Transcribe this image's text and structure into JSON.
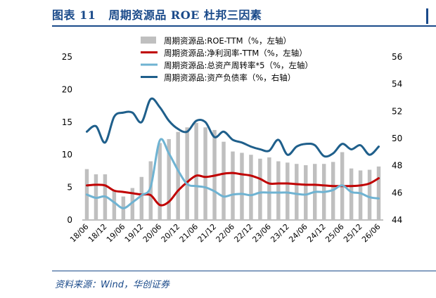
{
  "figure": {
    "number": "图表 11",
    "title": "周期资源品 ROE 杜邦三因素",
    "source": "资料来源：Wind，华创证券"
  },
  "chart_data": {
    "type": "bar+line",
    "categories": [
      "18/06",
      "18/09",
      "18/12",
      "19/03",
      "19/06",
      "19/09",
      "19/12",
      "20/03",
      "20/06",
      "20/09",
      "20/12",
      "21/03",
      "21/06",
      "21/09",
      "21/12",
      "22/03",
      "22/06",
      "22/09",
      "22/12",
      "23/03",
      "23/06",
      "23/09",
      "23/12",
      "24/03",
      "24/06",
      "24/09",
      "24/12",
      "25/03",
      "25/06",
      "25/09",
      "25/12",
      "26/03",
      "26/06"
    ],
    "x_tick_labels": [
      "18/06",
      "18/12",
      "19/06",
      "19/12",
      "20/06",
      "20/12",
      "21/06",
      "21/12",
      "22/06",
      "22/12",
      "23/06",
      "23/12",
      "24/06",
      "24/12",
      "25/06",
      "25/12",
      "26/06"
    ],
    "y_left": {
      "min": 0,
      "max": 25,
      "ticks": [
        0,
        5,
        10,
        15,
        20,
        25
      ]
    },
    "y_right": {
      "min": 44,
      "max": 56,
      "ticks": [
        44,
        46,
        48,
        50,
        52,
        54,
        56
      ]
    },
    "legend_position": "top-center",
    "series": [
      {
        "name": "周期资源品:ROE-TTM（%，左轴）",
        "kind": "bar",
        "axis": "left",
        "color": "#bfbfbf",
        "values": [
          7.8,
          7.0,
          7.0,
          4.5,
          3.6,
          4.9,
          6.6,
          9.0,
          11.8,
          12.4,
          13.5,
          14.2,
          14.9,
          14.2,
          13.8,
          12.0,
          10.5,
          10.3,
          10.0,
          9.4,
          9.6,
          9.0,
          8.8,
          8.6,
          8.4,
          8.6,
          8.6,
          8.9,
          10.4,
          7.9,
          7.6,
          7.7,
          8.2
        ]
      },
      {
        "name": "周期资源品:净利润率-TTM（%，左轴）",
        "kind": "line",
        "axis": "left",
        "color": "#c00000",
        "values": [
          5.3,
          5.4,
          5.3,
          4.5,
          4.3,
          4.1,
          3.9,
          3.8,
          2.3,
          2.8,
          4.5,
          5.8,
          6.8,
          6.6,
          6.8,
          7.1,
          7.2,
          7.0,
          6.8,
          6.3,
          5.6,
          5.6,
          5.6,
          5.5,
          5.4,
          5.4,
          5.3,
          5.2,
          5.2,
          5.2,
          5.3,
          5.6,
          6.4
        ]
      },
      {
        "name": "周期资源品:总资产周转率*5（%，左轴）",
        "kind": "line",
        "axis": "left",
        "color": "#6fb3d2",
        "values": [
          3.9,
          3.4,
          3.6,
          2.7,
          1.8,
          2.7,
          3.8,
          5.1,
          12.2,
          10.2,
          7.6,
          5.5,
          5.2,
          5.0,
          4.4,
          3.6,
          3.9,
          4.0,
          3.8,
          4.2,
          4.2,
          4.2,
          4.2,
          4.0,
          3.9,
          4.3,
          4.3,
          4.6,
          5.3,
          4.3,
          4.1,
          3.5,
          3.3
        ]
      },
      {
        "name": "周期资源品:资产负债率（%，右轴）",
        "kind": "line",
        "axis": "right",
        "color": "#1f5f8b",
        "values": [
          50.5,
          50.9,
          49.7,
          51.6,
          51.9,
          51.9,
          51.2,
          52.9,
          52.3,
          51.3,
          50.7,
          50.5,
          51.3,
          51.2,
          50.1,
          50.5,
          49.9,
          49.7,
          49.4,
          49.2,
          49.1,
          49.9,
          48.8,
          49.4,
          49.6,
          49.5,
          48.7,
          48.9,
          49.6,
          49.2,
          49.5,
          48.8,
          49.4
        ]
      }
    ]
  }
}
